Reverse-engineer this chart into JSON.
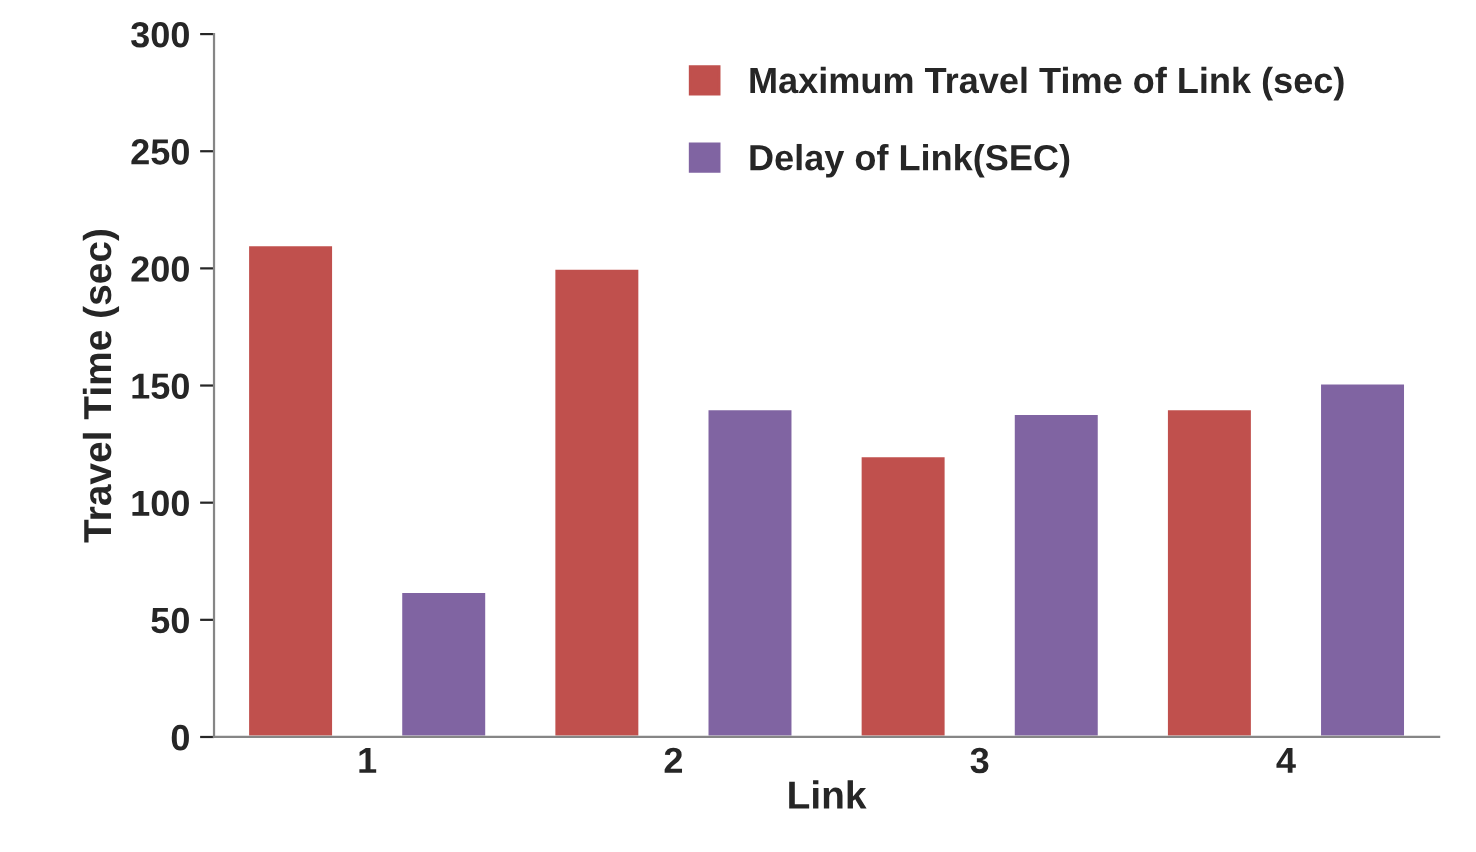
{
  "chart_data": {
    "type": "bar",
    "xlabel": "Link",
    "ylabel": "Travel Time (sec)",
    "categories": [
      "1",
      "2",
      "3",
      "4"
    ],
    "series": [
      {
        "name": "Maximum Travel Time of Link (sec)",
        "color": "#c0504d",
        "values": [
          210,
          200,
          120,
          140
        ]
      },
      {
        "name": "Delay of Link(SEC)",
        "color": "#8064a2",
        "values": [
          62,
          140,
          138,
          151
        ]
      }
    ],
    "ylim": [
      0,
      300
    ],
    "yticks": [
      0,
      50,
      100,
      150,
      200,
      250,
      300
    ],
    "grid": false,
    "legend": "top right"
  }
}
